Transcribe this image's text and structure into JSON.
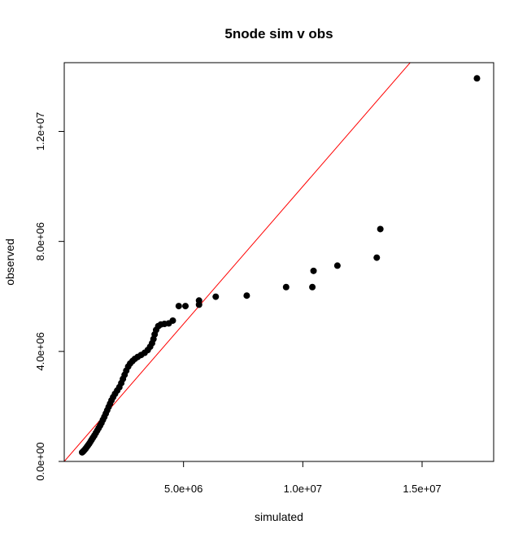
{
  "chart_data": {
    "type": "scatter",
    "title": "5node sim v obs",
    "xlabel": "simulated",
    "ylabel": "observed",
    "xlim": [
      0,
      18000000
    ],
    "ylim": [
      0,
      14500000
    ],
    "x_ticks": [
      {
        "value": 5000000,
        "label": "5.0e+06"
      },
      {
        "value": 10000000,
        "label": "1.0e+07"
      },
      {
        "value": 15000000,
        "label": "1.5e+07"
      }
    ],
    "y_ticks": [
      {
        "value": 0,
        "label": "0.0e+00"
      },
      {
        "value": 4000000,
        "label": "4.0e+06"
      },
      {
        "value": 8000000,
        "label": "8.0e+06"
      },
      {
        "value": 12000000,
        "label": "1.2e+07"
      }
    ],
    "reference_line": {
      "slope": 1,
      "intercept": 0,
      "color": "#ff0000"
    },
    "point_color": "#000000",
    "points": [
      {
        "x": 750000,
        "y": 330000
      },
      {
        "x": 800000,
        "y": 370000
      },
      {
        "x": 850000,
        "y": 420000
      },
      {
        "x": 900000,
        "y": 470000
      },
      {
        "x": 950000,
        "y": 530000
      },
      {
        "x": 1000000,
        "y": 590000
      },
      {
        "x": 1050000,
        "y": 650000
      },
      {
        "x": 1100000,
        "y": 720000
      },
      {
        "x": 1150000,
        "y": 790000
      },
      {
        "x": 1200000,
        "y": 860000
      },
      {
        "x": 1260000,
        "y": 940000
      },
      {
        "x": 1320000,
        "y": 1030000
      },
      {
        "x": 1380000,
        "y": 1120000
      },
      {
        "x": 1440000,
        "y": 1210000
      },
      {
        "x": 1500000,
        "y": 1300000
      },
      {
        "x": 1560000,
        "y": 1400000
      },
      {
        "x": 1620000,
        "y": 1510000
      },
      {
        "x": 1680000,
        "y": 1620000
      },
      {
        "x": 1740000,
        "y": 1740000
      },
      {
        "x": 1800000,
        "y": 1860000
      },
      {
        "x": 1860000,
        "y": 1980000
      },
      {
        "x": 1920000,
        "y": 2100000
      },
      {
        "x": 1980000,
        "y": 2220000
      },
      {
        "x": 2050000,
        "y": 2340000
      },
      {
        "x": 2130000,
        "y": 2460000
      },
      {
        "x": 2220000,
        "y": 2580000
      },
      {
        "x": 2310000,
        "y": 2700000
      },
      {
        "x": 2390000,
        "y": 2850000
      },
      {
        "x": 2460000,
        "y": 3000000
      },
      {
        "x": 2530000,
        "y": 3150000
      },
      {
        "x": 2600000,
        "y": 3300000
      },
      {
        "x": 2680000,
        "y": 3450000
      },
      {
        "x": 2760000,
        "y": 3560000
      },
      {
        "x": 2860000,
        "y": 3650000
      },
      {
        "x": 2960000,
        "y": 3730000
      },
      {
        "x": 3080000,
        "y": 3800000
      },
      {
        "x": 3220000,
        "y": 3870000
      },
      {
        "x": 3370000,
        "y": 3950000
      },
      {
        "x": 3500000,
        "y": 4050000
      },
      {
        "x": 3600000,
        "y": 4170000
      },
      {
        "x": 3680000,
        "y": 4300000
      },
      {
        "x": 3740000,
        "y": 4450000
      },
      {
        "x": 3790000,
        "y": 4620000
      },
      {
        "x": 3850000,
        "y": 4780000
      },
      {
        "x": 3940000,
        "y": 4920000
      },
      {
        "x": 4050000,
        "y": 4980000
      },
      {
        "x": 4200000,
        "y": 5000000
      },
      {
        "x": 4380000,
        "y": 5020000
      },
      {
        "x": 4550000,
        "y": 5120000
      },
      {
        "x": 4800000,
        "y": 5650000
      },
      {
        "x": 5080000,
        "y": 5650000
      },
      {
        "x": 5650000,
        "y": 5700000
      },
      {
        "x": 5650000,
        "y": 5850000
      },
      {
        "x": 6350000,
        "y": 5990000
      },
      {
        "x": 7650000,
        "y": 6030000
      },
      {
        "x": 9300000,
        "y": 6340000
      },
      {
        "x": 10400000,
        "y": 6340000
      },
      {
        "x": 10450000,
        "y": 6930000
      },
      {
        "x": 11450000,
        "y": 7120000
      },
      {
        "x": 13100000,
        "y": 7410000
      },
      {
        "x": 13250000,
        "y": 8450000
      },
      {
        "x": 17300000,
        "y": 13930000
      }
    ]
  }
}
